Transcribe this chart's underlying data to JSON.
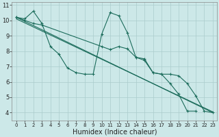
{
  "xlabel": "Humidex (Indice chaleur)",
  "xlim": [
    -0.5,
    23.5
  ],
  "ylim": [
    3.5,
    11.2
  ],
  "yticks": [
    4,
    5,
    6,
    7,
    8,
    9,
    10,
    11
  ],
  "xticks": [
    0,
    1,
    2,
    3,
    4,
    5,
    6,
    7,
    8,
    9,
    10,
    11,
    12,
    13,
    14,
    15,
    16,
    17,
    18,
    19,
    20,
    21,
    22,
    23
  ],
  "bg_color": "#cce8e8",
  "line_color": "#1a6b5a",
  "grid_color": "#aacccc",
  "s1x": [
    0,
    1,
    2,
    3,
    4,
    5,
    6,
    7,
    8,
    9,
    10,
    11,
    12,
    13,
    14,
    15,
    16,
    17,
    18,
    19,
    20,
    21
  ],
  "s1y": [
    10.2,
    10.1,
    10.6,
    9.8,
    8.3,
    7.8,
    6.9,
    6.6,
    6.5,
    6.5,
    9.1,
    10.5,
    10.3,
    9.2,
    7.6,
    7.5,
    6.6,
    6.5,
    5.9,
    5.2,
    4.1,
    4.1
  ],
  "s2x": [
    0,
    1,
    2,
    3,
    10,
    11,
    12,
    13,
    14,
    15,
    16,
    17,
    18,
    19,
    20,
    21,
    22,
    23
  ],
  "s2y": [
    10.2,
    10.0,
    9.8,
    9.7,
    8.3,
    8.1,
    8.3,
    8.15,
    7.6,
    7.4,
    6.6,
    6.5,
    6.5,
    6.4,
    5.9,
    5.1,
    4.1,
    4.0
  ],
  "s3x": [
    0,
    23
  ],
  "s3y": [
    10.2,
    4.0
  ],
  "s4x": [
    0,
    23
  ],
  "s4y": [
    10.1,
    4.05
  ],
  "xlabel_fontsize": 7,
  "tick_fontsize_x": 5,
  "tick_fontsize_y": 6
}
